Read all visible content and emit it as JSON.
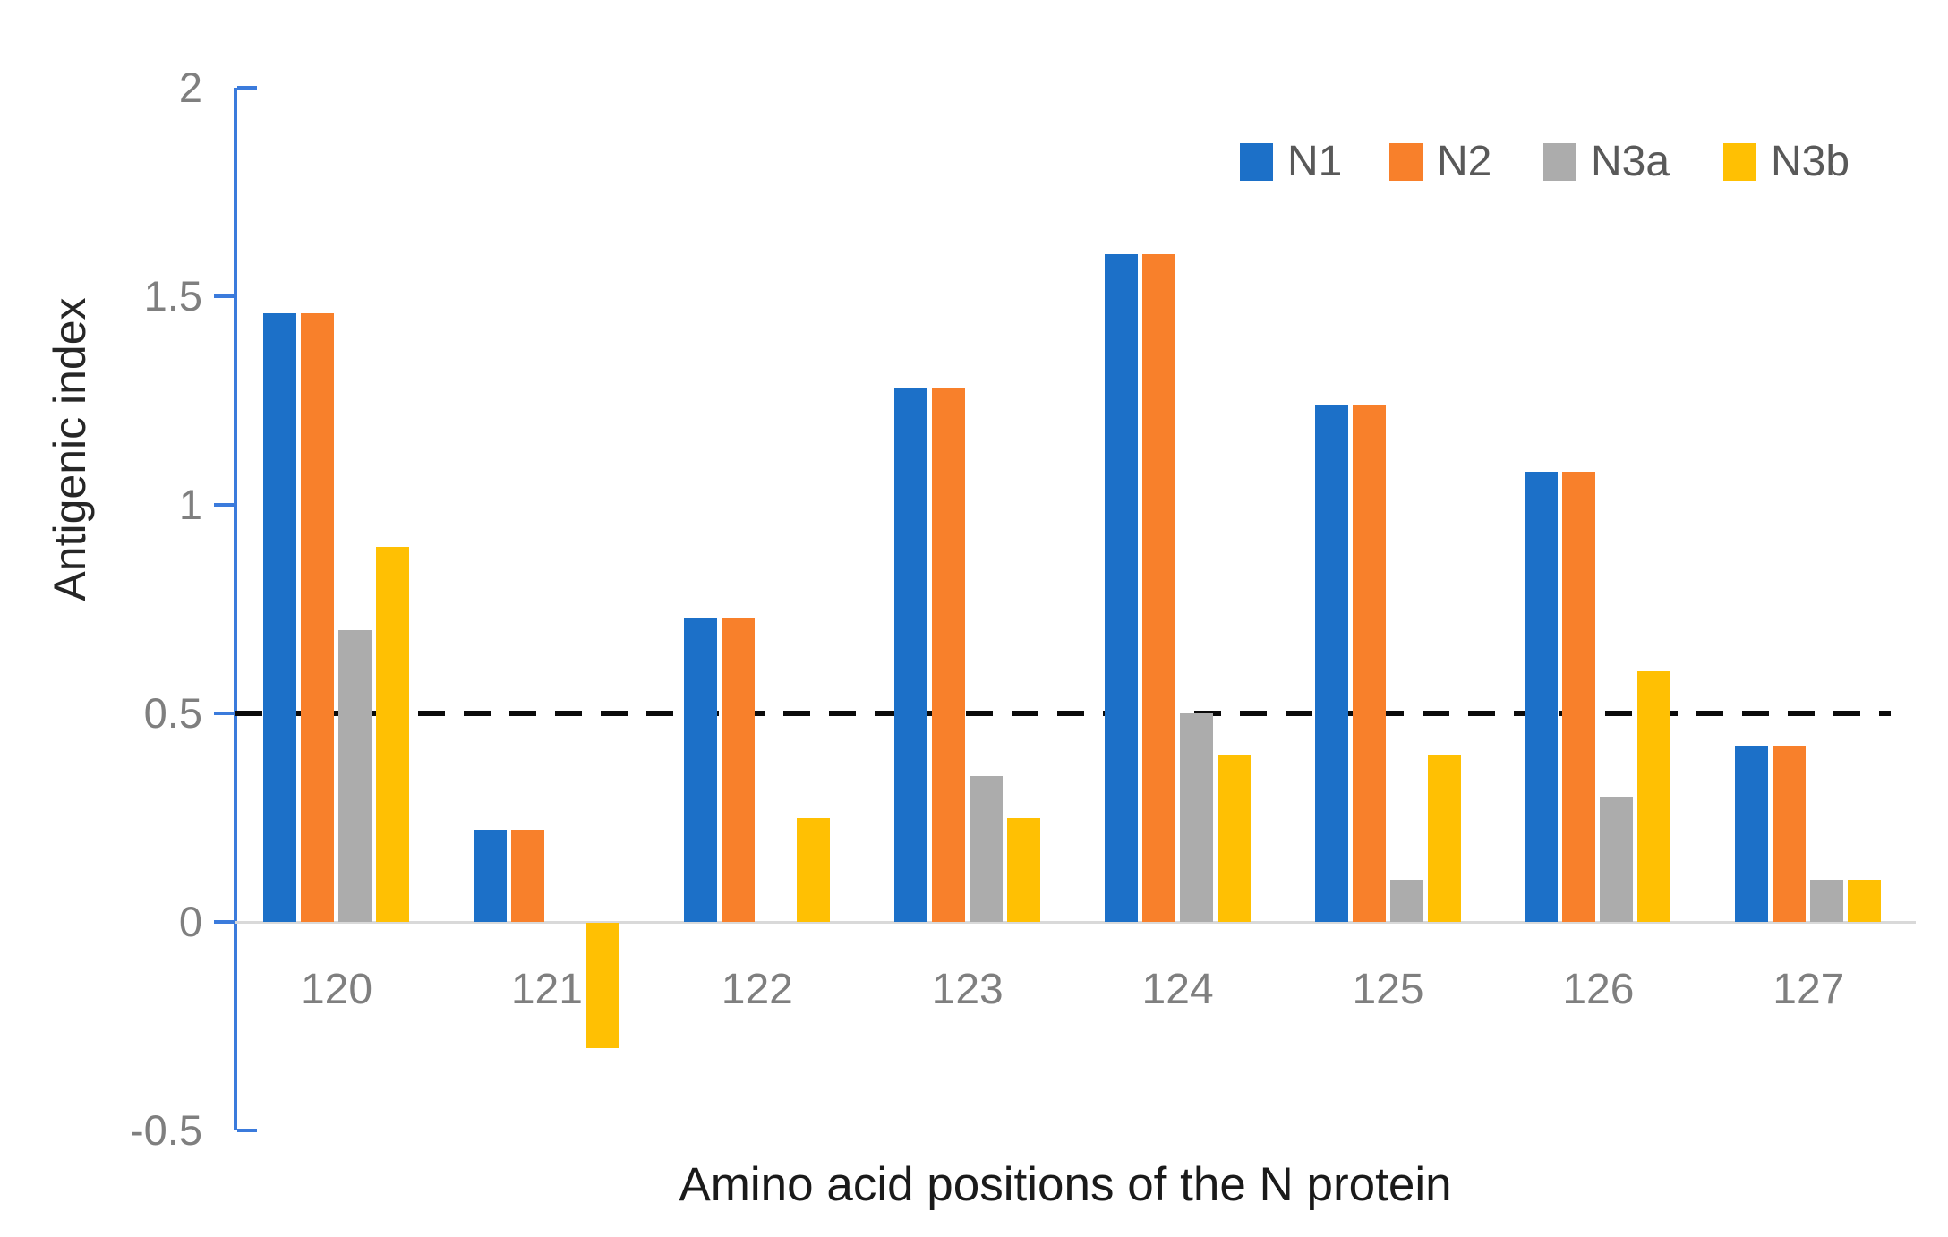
{
  "chart_data": {
    "type": "bar",
    "title": "",
    "categories": [
      "120",
      "121",
      "122",
      "123",
      "124",
      "125",
      "126",
      "127"
    ],
    "series": [
      {
        "name": "N1",
        "color": "#1c70c8",
        "values": [
          1.46,
          0.22,
          0.73,
          1.28,
          1.6,
          1.24,
          1.08,
          0.42
        ]
      },
      {
        "name": "N2",
        "color": "#f8802b",
        "values": [
          1.46,
          0.22,
          0.73,
          1.28,
          1.6,
          1.24,
          1.08,
          0.42
        ]
      },
      {
        "name": "N3a",
        "color": "#acacac",
        "values": [
          0.7,
          0,
          0,
          0.35,
          0.5,
          0.1,
          0.3,
          0.1
        ]
      },
      {
        "name": "N3b",
        "color": "#ffc003",
        "values": [
          0.9,
          -0.3,
          0.25,
          0.25,
          0.4,
          0.4,
          0.6,
          0.1
        ]
      }
    ],
    "xlabel": "Amino acid positions of the N protein",
    "ylabel": "Antigenic index",
    "ylim": [
      -0.5,
      2
    ],
    "y_ticks": [
      2,
      1.5,
      1,
      0.5,
      0,
      -0.5
    ],
    "y_tick_labels": [
      "2",
      "1.5",
      "1",
      "0.5",
      "0",
      "-0.5"
    ],
    "reference_line": {
      "y": 0.5,
      "style": "dashed",
      "color": "#0b0b0b"
    },
    "grid": false,
    "legend_position": "top-right"
  },
  "colors": {
    "axis_line": "#3b7bdc",
    "tick_label": "#7f7f7f",
    "axis_title": "#262626",
    "legend_text": "#595959",
    "baseline": "#d9d9d9"
  }
}
